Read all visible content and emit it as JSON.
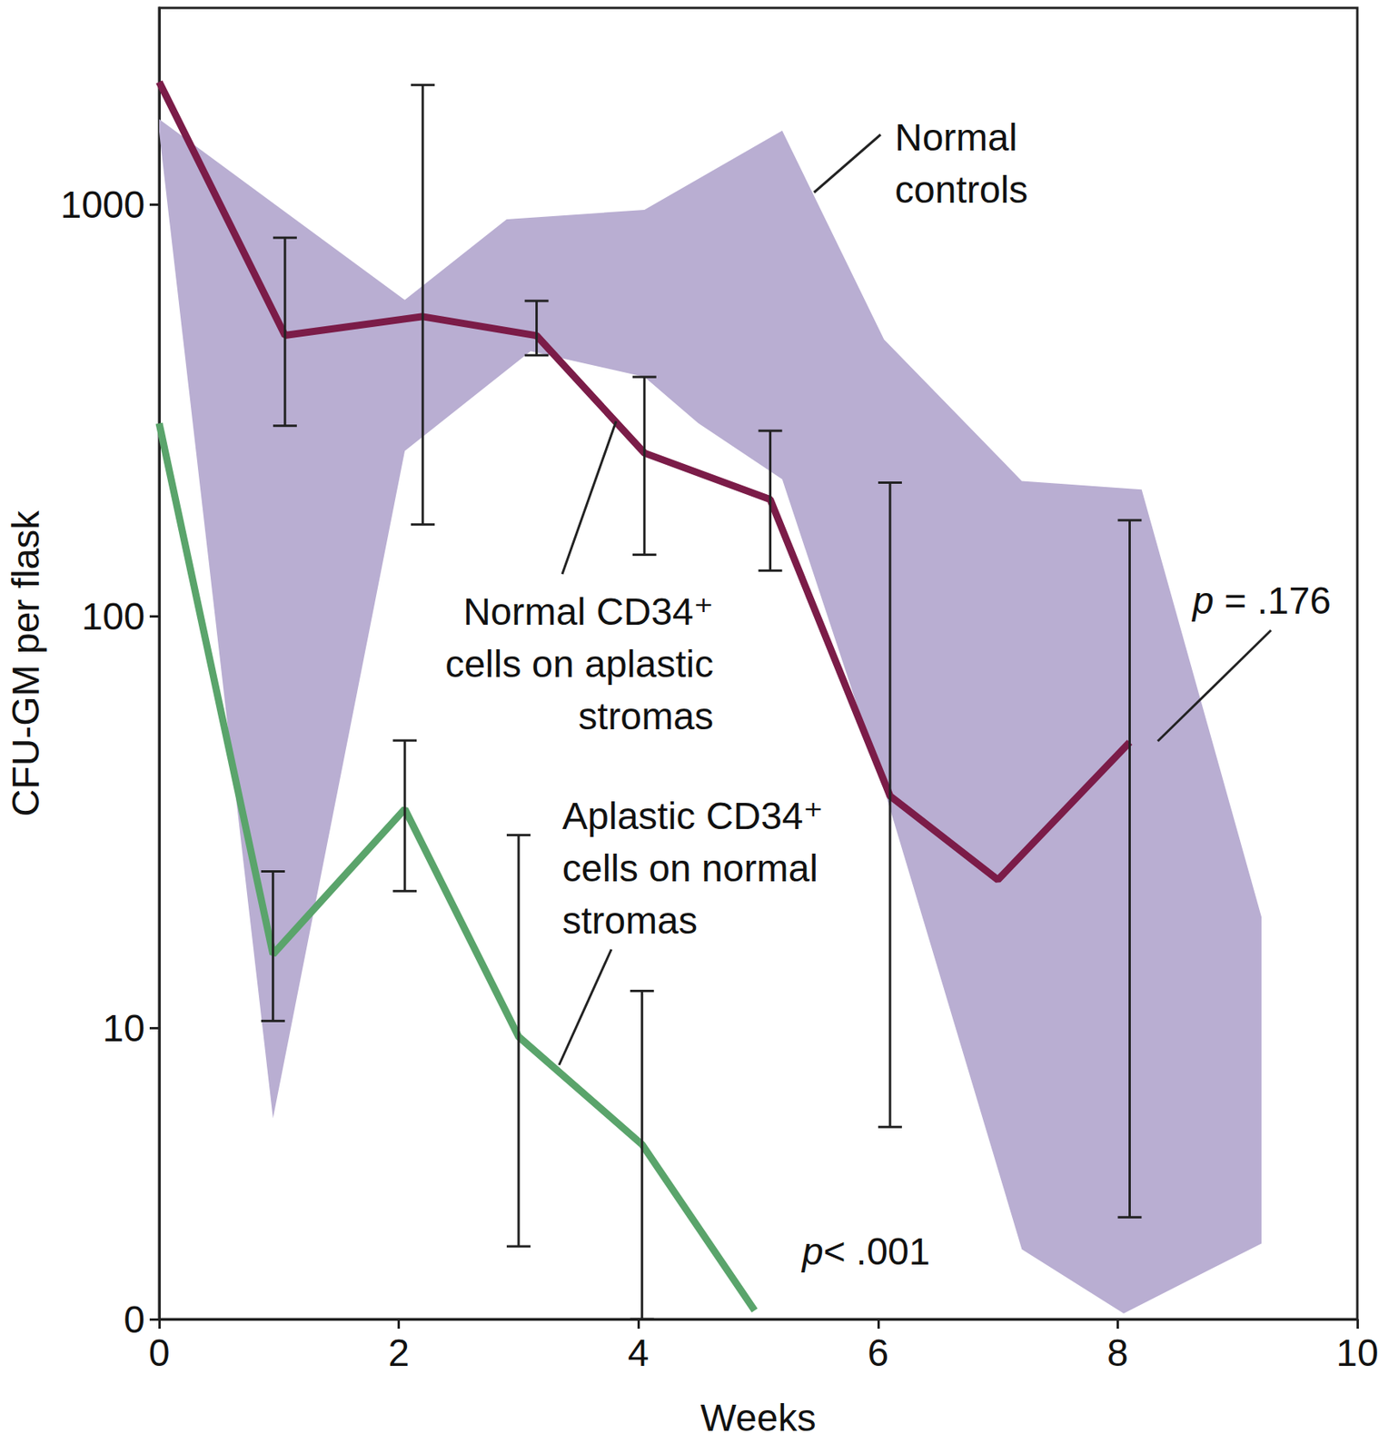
{
  "chart_data": {
    "type": "line",
    "xlabel": "Weeks",
    "ylabel": "CFU-GM per flask",
    "log": "y",
    "grid": false,
    "xlim": [
      0,
      10
    ],
    "xticks": [
      0,
      2,
      4,
      6,
      8,
      10
    ],
    "ylim": [
      0,
      3000
    ],
    "yticks": [
      0,
      10,
      100,
      1000
    ],
    "series": [
      {
        "name": "Normal\ncontrols",
        "type": "band",
        "color": "#b9aed2",
        "x_upper": [
          0,
          2.05,
          2.9,
          4.05,
          5.2,
          6.05,
          7.2,
          8.2,
          9.2
        ],
        "upper": [
          1610,
          586,
          920,
          970,
          1510,
          470,
          213,
          203,
          18.6
        ],
        "x_lower": [
          0,
          0.95,
          2.05,
          3.1,
          4.05,
          4.5,
          5.2,
          6.0,
          7.2,
          8.05,
          9.2
        ],
        "lower": [
          1500,
          6.9,
          252,
          440,
          381,
          294,
          215,
          42.6,
          2.4,
          0.2,
          2.6
        ]
      },
      {
        "name": "Normal CD34⁺\ncells on aplastic\nstromas",
        "type": "line",
        "color": "#7b1c48",
        "x": [
          0,
          1.05,
          2.2,
          3.15,
          4.05,
          5.1,
          6.1,
          7,
          8.1
        ],
        "values": [
          1984,
          481,
          534,
          480,
          249,
          192,
          36.6,
          22.9,
          49.4
        ],
        "error_low": [
          null,
          290,
          167,
          430,
          141,
          129,
          6.6,
          null,
          3.5
        ],
        "error_high": [
          null,
          830,
          1950,
          583,
          381,
          282,
          211,
          null,
          171
        ]
      },
      {
        "name": "Aplastic CD34⁺\ncells on normal\nstromas",
        "type": "line",
        "color": "#5aa46b",
        "x": [
          0,
          0.95,
          2.05,
          3.0,
          4.03,
          4.97
        ],
        "values": [
          294,
          15.1,
          34,
          9.7,
          6.0,
          0.3
        ],
        "error_low": [
          null,
          10.4,
          21.5,
          2.5,
          0,
          null
        ],
        "error_high": [
          null,
          24,
          49.9,
          29.4,
          12.3,
          null
        ]
      }
    ],
    "annotations": [
      "p = .176",
      "p< .001"
    ]
  }
}
